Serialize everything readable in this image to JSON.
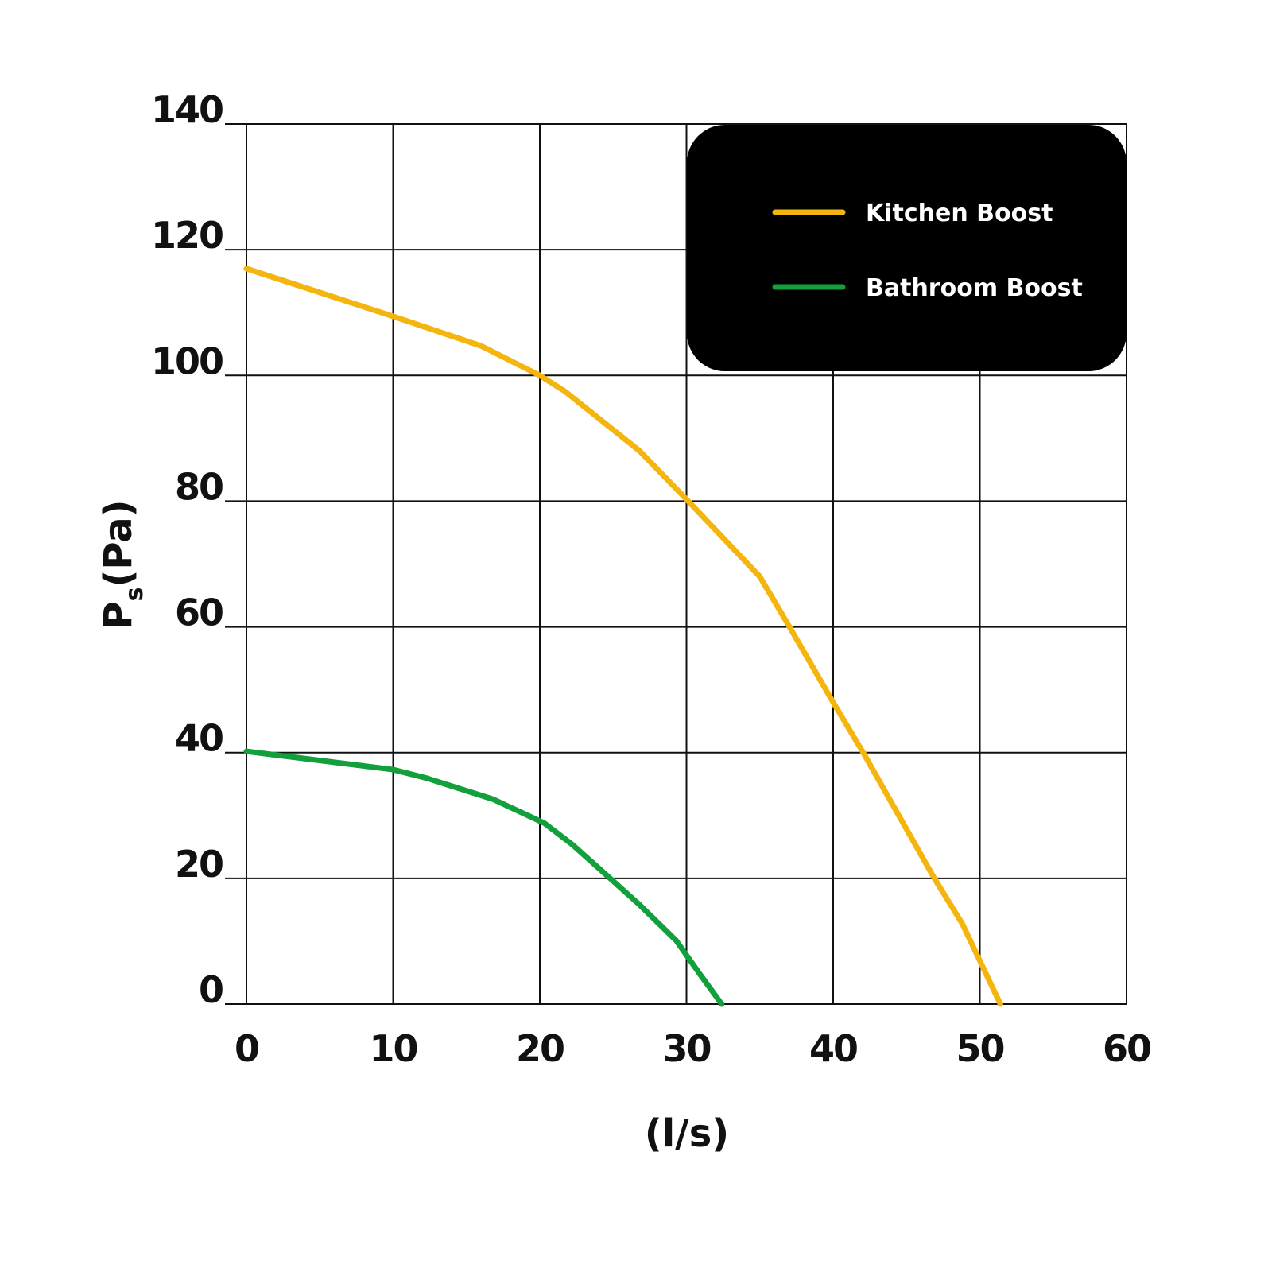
{
  "chart_data": {
    "type": "line",
    "xlabel": "(l/s)",
    "ylabel": {
      "main": "P",
      "sub": "s",
      "unit": "(Pa)"
    },
    "xlim": [
      0,
      60
    ],
    "ylim": [
      0,
      140
    ],
    "xticks": [
      "0",
      "10",
      "20",
      "30",
      "40",
      "50",
      "60"
    ],
    "yticks": [
      "0",
      "20",
      "40",
      "60",
      "80",
      "100",
      "120",
      "140"
    ],
    "grid": true,
    "legend_placement": "top-right",
    "series": [
      {
        "name": "Kitchen Boost",
        "color": "#f5b50f",
        "x": [
          0,
          10,
          16,
          20,
          21.7,
          26.8,
          30,
          35,
          36.9,
          40,
          42,
          46.9,
          48.8,
          51.4
        ],
        "y": [
          117,
          109.4,
          104.7,
          100,
          97.5,
          88,
          80.3,
          68,
          60.5,
          48,
          40.2,
          20,
          12.8,
          0
        ]
      },
      {
        "name": "Bathroom Boost",
        "color": "#12a03c",
        "x": [
          0,
          10,
          12.2,
          16.8,
          20.3,
          22.2,
          23.6,
          26.8,
          29.3,
          30.9,
          32.4
        ],
        "y": [
          40.2,
          37.3,
          36,
          32.6,
          28.8,
          25.4,
          22.5,
          15.8,
          10.1,
          4.8,
          0
        ]
      }
    ]
  }
}
